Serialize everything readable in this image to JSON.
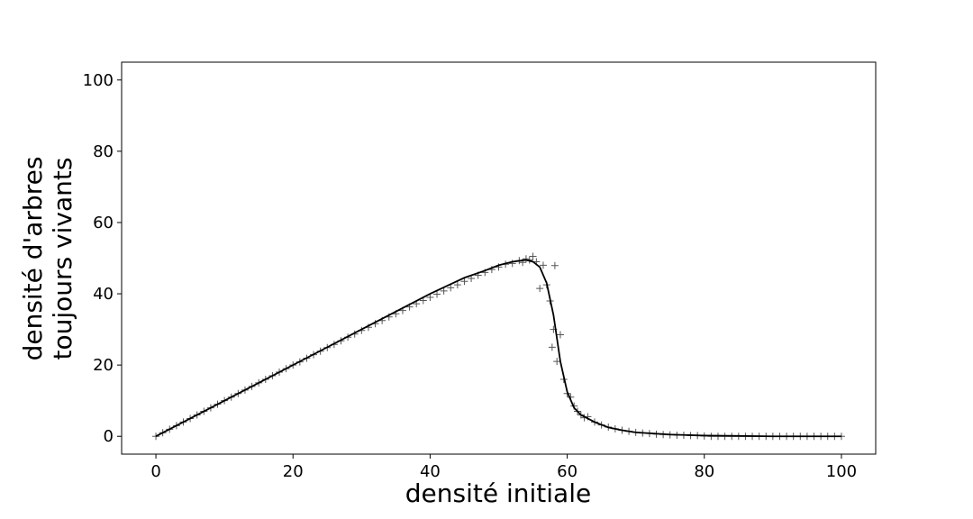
{
  "chart_data": {
    "type": "scatter",
    "xlabel": "densité initiale",
    "ylabel": [
      "densité d'arbres",
      "toujours vivants"
    ],
    "xlim": [
      -5,
      105
    ],
    "ylim": [
      -5,
      105
    ],
    "xticks": [
      0,
      20,
      40,
      60,
      80,
      100
    ],
    "yticks": [
      0,
      20,
      40,
      60,
      80,
      100
    ],
    "grid": false,
    "series": [
      {
        "type": "scatter",
        "marker": "+",
        "color": "#555555",
        "x": [
          0,
          1,
          2,
          3,
          4,
          5,
          6,
          7,
          8,
          9,
          10,
          11,
          12,
          13,
          14,
          15,
          16,
          17,
          18,
          19,
          20,
          21,
          22,
          23,
          24,
          25,
          26,
          27,
          28,
          29,
          30,
          31,
          32,
          33,
          34,
          35,
          36,
          37,
          38,
          39,
          40,
          41,
          42,
          43,
          44,
          45,
          46,
          47,
          48,
          49,
          50,
          51,
          52,
          53,
          54,
          55,
          56,
          57,
          58,
          59,
          60,
          61,
          62,
          63,
          64,
          65,
          66,
          67,
          68,
          69,
          70,
          71,
          72,
          73,
          74,
          75,
          76,
          77,
          78,
          79,
          80,
          81,
          82,
          83,
          84,
          85,
          86,
          87,
          88,
          89,
          90,
          91,
          92,
          93,
          94,
          95,
          96,
          97,
          98,
          99,
          100,
          55.5,
          56.5,
          57.5,
          58.5,
          59.5,
          57.8,
          58.2,
          54.5,
          53.5,
          60.5,
          61.5,
          62.5
        ],
        "y": [
          0,
          1,
          2,
          3,
          4,
          5,
          6,
          7,
          8,
          9,
          10,
          11,
          12,
          13,
          14,
          15,
          16,
          17,
          18,
          19,
          20,
          20.9,
          21.9,
          22.9,
          23.9,
          24.9,
          25.8,
          26.8,
          27.8,
          28.7,
          29.7,
          30.6,
          31.6,
          32.5,
          33.5,
          34.4,
          35.3,
          36.3,
          37.2,
          38.1,
          39,
          39.9,
          40.8,
          41.7,
          42.5,
          43.5,
          44.3,
          45.2,
          46,
          46.8,
          47.5,
          48.3,
          48.5,
          49.3,
          49.8,
          50.5,
          41.5,
          42.5,
          30,
          28.5,
          12,
          8.5,
          6,
          5.5,
          4,
          3.2,
          2.6,
          2.1,
          1.7,
          1.4,
          1.1,
          0.9,
          0.8,
          0.6,
          0.5,
          0.4,
          0.3,
          0.3,
          0.2,
          0.2,
          0.1,
          0,
          0,
          0,
          0,
          0,
          0,
          0,
          0,
          0,
          0,
          0,
          0,
          0,
          0,
          0,
          0,
          0,
          0,
          0,
          0,
          49,
          48,
          38,
          21,
          16,
          25,
          47.9,
          49.5,
          48.8,
          11,
          7,
          5.2
        ]
      },
      {
        "type": "line",
        "color": "#000000",
        "x": [
          0,
          5,
          10,
          15,
          20,
          25,
          30,
          35,
          40,
          45,
          48,
          50,
          52,
          54,
          55,
          56,
          57,
          58,
          59,
          60,
          61,
          62,
          63,
          64,
          66,
          68,
          70,
          75,
          80,
          85,
          90,
          100
        ],
        "y": [
          0,
          5,
          10,
          15,
          20,
          25,
          30,
          35,
          40,
          44.5,
          46.5,
          48,
          49,
          49.5,
          49,
          47.5,
          43,
          34,
          21,
          12.5,
          8,
          6,
          5,
          4,
          2.5,
          1.7,
          1.1,
          0.5,
          0.2,
          0.1,
          0,
          0
        ]
      }
    ]
  }
}
